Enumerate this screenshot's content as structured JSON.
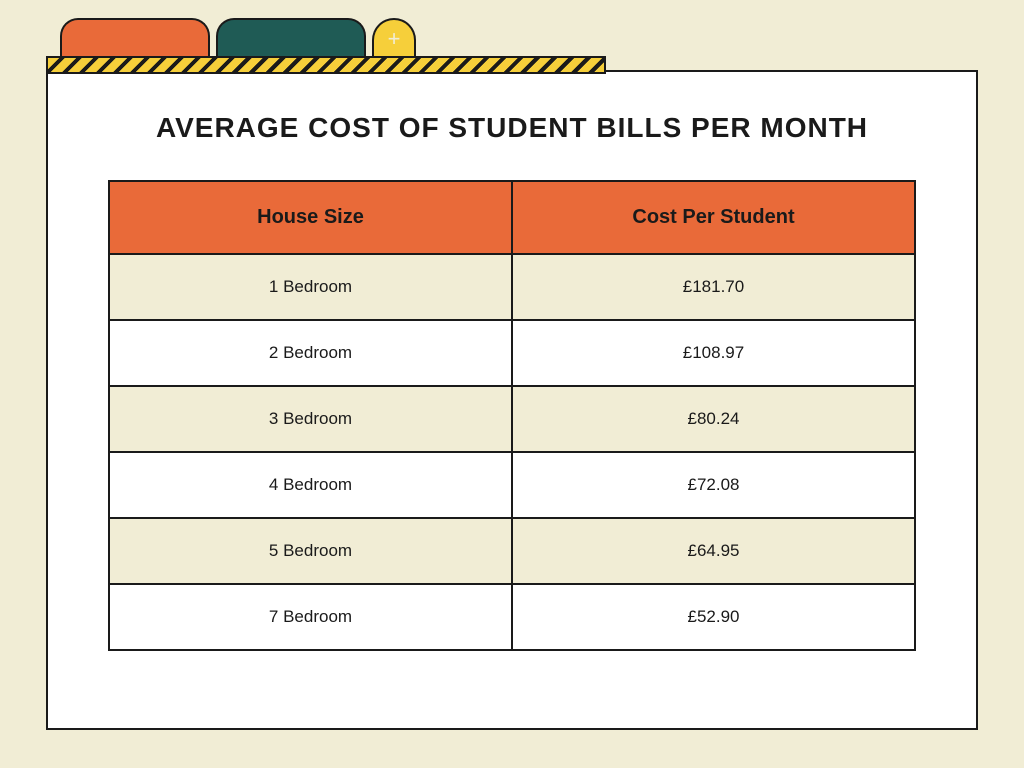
{
  "title": "AVERAGE COST OF STUDENT BILLS PER MONTH",
  "colors": {
    "page_bg": "#f1edd5",
    "card_bg": "#ffffff",
    "border": "#1a1a1a",
    "header_bg": "#e96a39",
    "row_alt_bg": "#f1edd5",
    "tab_orange": "#e96a39",
    "tab_teal": "#1f5b55",
    "tab_yellow": "#f6cf3a"
  },
  "tabs": {
    "add_icon_label": "+"
  },
  "table": {
    "type": "table",
    "columns": [
      "House Size",
      "Cost Per Student"
    ],
    "rows": [
      [
        "1 Bedroom",
        "£181.70"
      ],
      [
        "2 Bedroom",
        "£108.97"
      ],
      [
        "3 Bedroom",
        "£80.24"
      ],
      [
        "4 Bedroom",
        "£72.08"
      ],
      [
        "5 Bedroom",
        "£64.95"
      ],
      [
        "7 Bedroom",
        "£52.90"
      ]
    ],
    "header_fontsize": 20,
    "cell_fontsize": 17,
    "header_bg": "#e96a39",
    "row_odd_bg": "#f1edd5",
    "row_even_bg": "#ffffff",
    "border_color": "#1a1a1a"
  }
}
